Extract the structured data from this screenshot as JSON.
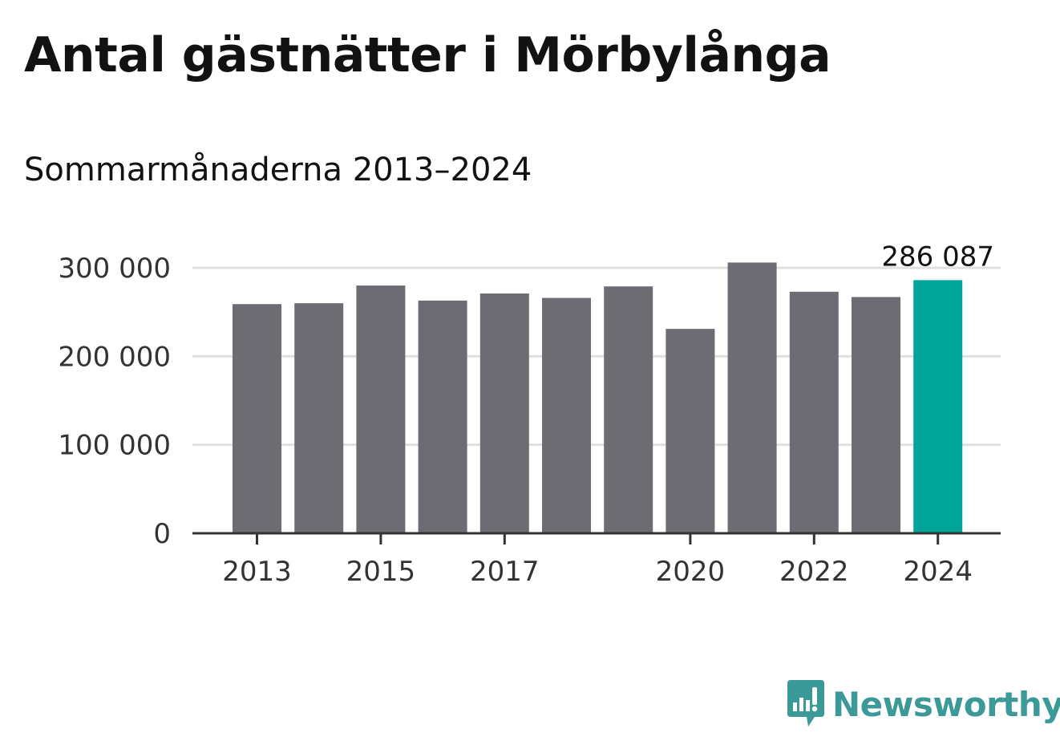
{
  "title": "Antal gästnätter i Mörbylånga",
  "subtitle": "Sommarmånaderna 2013–2024",
  "brand": {
    "name": "Newsworthy",
    "color": "#3b9a98",
    "logo_icon": "bar-chart-speech-bubble-icon"
  },
  "colors": {
    "bar": "#6d6c72",
    "highlight": "#00a499",
    "grid": "#e0e0e0",
    "axis": "#333333"
  },
  "chart_data": {
    "type": "bar",
    "categories": [
      "2013",
      "2014",
      "2015",
      "2016",
      "2017",
      "2018",
      "2019",
      "2020",
      "2021",
      "2022",
      "2023",
      "2024"
    ],
    "values": [
      259000,
      260000,
      280000,
      263000,
      271000,
      266000,
      279000,
      231000,
      306000,
      273000,
      267000,
      286087
    ],
    "highlight_index": 11,
    "data_labels": [
      {
        "index": 11,
        "text": "286 087"
      }
    ],
    "x_tick_labels": [
      "2013",
      "",
      "2015",
      "",
      "2017",
      "",
      "",
      "2020",
      "",
      "2022",
      "",
      "2024"
    ],
    "y_ticks": [
      0,
      100000,
      200000,
      300000
    ],
    "y_tick_labels": [
      "0",
      "100 000",
      "200 000",
      "300 000"
    ],
    "ylim": [
      0,
      300000
    ],
    "grid": true,
    "legend": "none"
  }
}
